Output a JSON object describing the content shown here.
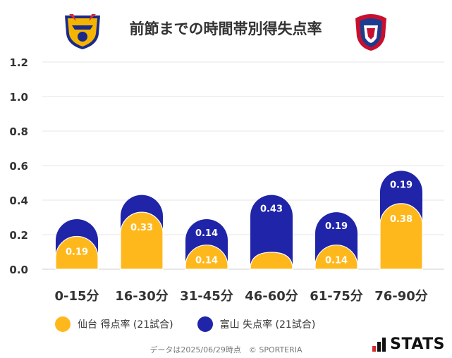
{
  "title": "前節までの時間帯別得失点率",
  "team_logos": [
    {
      "name": "sendai-logo",
      "text": "VEGALTA",
      "colors": [
        "#f4b400",
        "#1a2a8a",
        "#d32f2f"
      ]
    },
    {
      "name": "toyama-logo",
      "text": "",
      "colors": [
        "#c8102e",
        "#1d3b8f",
        "#ffffff"
      ]
    }
  ],
  "chart_data": {
    "type": "bar",
    "title": "前節までの時間帯別得失点率",
    "categories": [
      "0-15分",
      "16-30分",
      "31-45分",
      "46-60分",
      "61-75分",
      "76-90分"
    ],
    "series": [
      {
        "name": "仙台 得点率 (21試合)",
        "color": "#ffb81c",
        "values": [
          0.19,
          0.33,
          0.14,
          0.0,
          0.14,
          0.38
        ],
        "labels": [
          "0.19",
          "0.33",
          "0.14",
          "",
          "0.14",
          "0.38"
        ]
      },
      {
        "name": "富山 失点率 (21試合)",
        "color": "#1f24a8",
        "values": [
          0.29,
          0.43,
          0.29,
          0.43,
          0.33,
          0.57
        ],
        "labels": [
          "",
          "",
          "0.14",
          "0.43",
          "0.19",
          "0.19"
        ]
      }
    ],
    "y_ticks": [
      "0.0",
      "0.2",
      "0.4",
      "0.6",
      "0.8",
      "1.0",
      "1.2"
    ],
    "ylim": [
      0,
      1.2
    ],
    "grid": true,
    "legend_position": "bottom"
  },
  "legend": [
    {
      "label": "仙台 得点率 (21試合)",
      "color": "#ffb81c"
    },
    {
      "label": "富山 失点率 (21試合)",
      "color": "#1f24a8"
    }
  ],
  "footer": "データは2025/06/29時点　© SPORTERIA",
  "brand": "STATS"
}
